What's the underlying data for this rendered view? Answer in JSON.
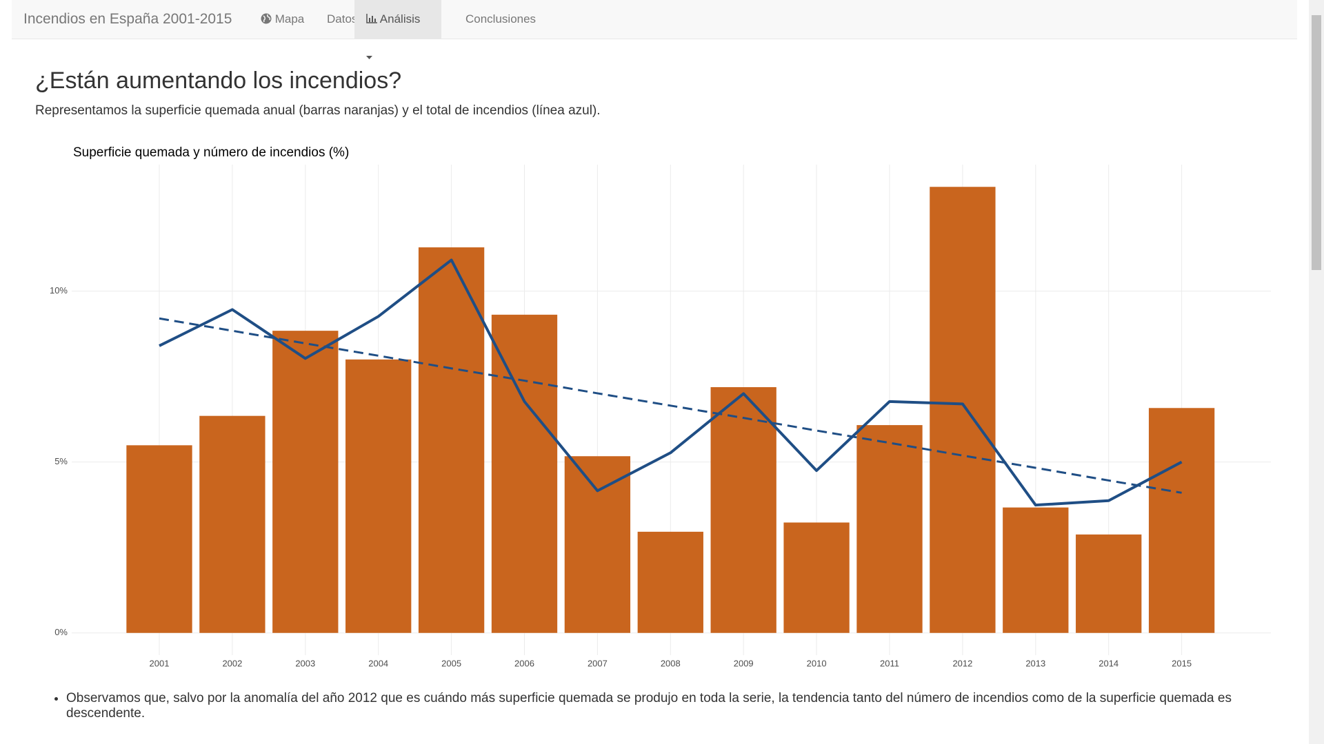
{
  "nav": {
    "brand": "Incendios en España 2001-2015",
    "items": [
      "Mapa",
      "Datos",
      "Análisis",
      "Conclusiones"
    ]
  },
  "heading": "¿Están aumentando los incendios?",
  "intro": "Representamos la superficie quemada anual (barras naranjas) y el total de incendios (línea azul).",
  "bullets": [
    "Observamos que, salvo por la anomalía del año 2012 que es cuándo más superficie quemada se produjo en toda la serie, la tendencia tanto del número de incendios como de la superficie quemada es descendente."
  ],
  "chart_data": {
    "type": "bar_line",
    "title": "Superficie quemada y número de incendios (%)",
    "categories": [
      "2001",
      "2002",
      "2003",
      "2004",
      "2005",
      "2006",
      "2007",
      "2008",
      "2009",
      "2010",
      "2011",
      "2012",
      "2013",
      "2014",
      "2015"
    ],
    "series": [
      {
        "type": "bar",
        "color": "#c9651e",
        "values": [
          5.49,
          6.35,
          8.84,
          8.0,
          11.28,
          9.31,
          5.17,
          2.96,
          7.19,
          3.23,
          6.08,
          13.05,
          3.67,
          2.88,
          6.58
        ]
      },
      {
        "type": "line",
        "color": "#1f4e85",
        "values": [
          8.4,
          9.46,
          8.03,
          9.26,
          10.91,
          6.77,
          4.16,
          5.27,
          7.0,
          4.75,
          6.77,
          6.7,
          3.74,
          3.87,
          5.0
        ]
      },
      {
        "type": "line",
        "dashed": true,
        "color": "#1f4e85",
        "values": [
          9.2,
          8.84,
          8.47,
          8.11,
          7.74,
          7.38,
          7.01,
          6.65,
          6.29,
          5.92,
          5.56,
          5.19,
          4.83,
          4.46,
          4.1
        ]
      }
    ],
    "ylim": [
      -0.65,
      13.7
    ],
    "yticks": [
      {
        "value": 0,
        "label": "0%"
      },
      {
        "value": 5,
        "label": "5%"
      },
      {
        "value": 10,
        "label": "10%"
      }
    ],
    "grid": true
  }
}
